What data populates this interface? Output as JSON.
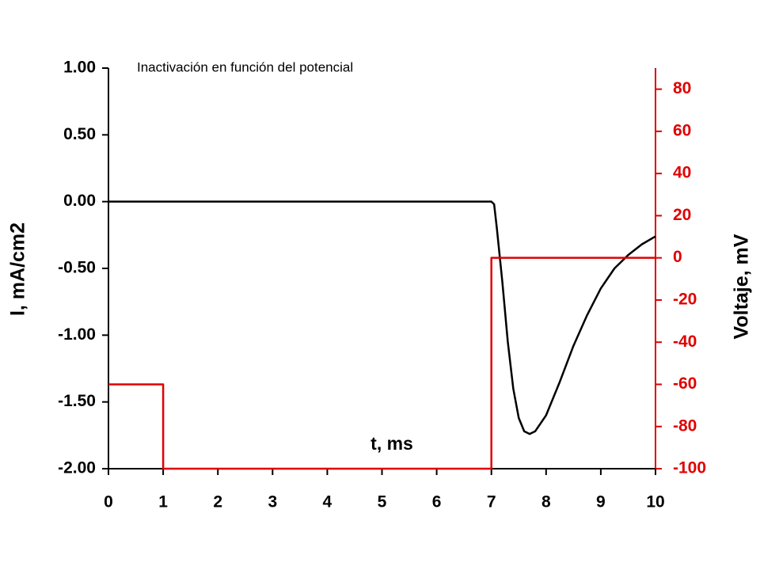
{
  "chart_data": {
    "type": "line",
    "title": "Inactivación en función del potencial",
    "x_label": "t, ms",
    "y_label": "I, mA/cm2",
    "y2_label": "Voltaje, mV",
    "xlim": [
      0,
      10
    ],
    "xticks": [
      0,
      1,
      2,
      3,
      4,
      5,
      6,
      7,
      8,
      9,
      10
    ],
    "ylim": [
      -2,
      1
    ],
    "yticks": [
      {
        "value": -2,
        "label": "-2.00"
      },
      {
        "value": -1.5,
        "label": "-1.50"
      },
      {
        "value": -1,
        "label": "-1.00"
      },
      {
        "value": -0.5,
        "label": "-0.50"
      },
      {
        "value": 0,
        "label": "0.00"
      },
      {
        "value": 0.5,
        "label": "0.50"
      },
      {
        "value": 1,
        "label": "1.00"
      }
    ],
    "y2lim": [
      -100,
      90
    ],
    "y2ticks": [
      -100,
      -80,
      -60,
      -40,
      -20,
      0,
      20,
      40,
      60,
      80
    ],
    "y2_color": "#e00000",
    "series": [
      {
        "color": "#000000",
        "x": [
          0,
          7.0,
          7.05,
          7.1,
          7.2,
          7.3,
          7.4,
          7.5,
          7.6,
          7.7,
          7.8,
          8.0,
          8.25,
          8.5,
          8.75,
          9.0,
          9.25,
          9.5,
          9.75,
          10
        ],
        "values": [
          0,
          0,
          -0.02,
          -0.2,
          -0.6,
          -1.05,
          -1.4,
          -1.62,
          -1.72,
          -1.74,
          -1.72,
          -1.6,
          -1.35,
          -1.08,
          -0.85,
          -0.65,
          -0.5,
          -0.4,
          -0.32,
          -0.26
        ]
      },
      {
        "color": "#e00000",
        "axis": "y2",
        "x": [
          0,
          1,
          1,
          7,
          7,
          10
        ],
        "values": [
          -60,
          -60,
          -100,
          -100,
          0,
          0
        ]
      }
    ]
  }
}
